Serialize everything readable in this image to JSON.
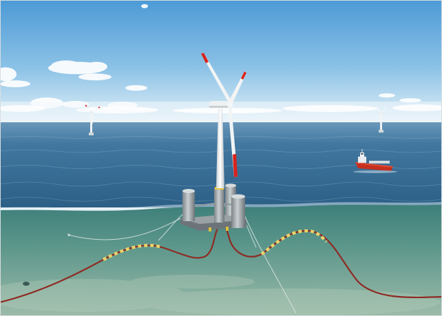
{
  "scene": {
    "icons": [
      "floating-wind-turbine",
      "distant-wind-turbine",
      "support-vessel",
      "mooring-line",
      "subsea-cable",
      "cable-float"
    ],
    "colors": {
      "sky_top": "#4f9fd8",
      "sky_horizon": "#e3f0f8",
      "sea_surface": "#2f6890",
      "sea_far": "#5d8eb0",
      "underwater": "#4f8d85",
      "seabed": "#86ab9a",
      "cable": "#8e2a22",
      "float_yellow": "#e8d36a",
      "blade_tip_red": "#d8241c",
      "turbine_white": "#f2f4f4",
      "vessel_hull": "#c8301f"
    }
  }
}
